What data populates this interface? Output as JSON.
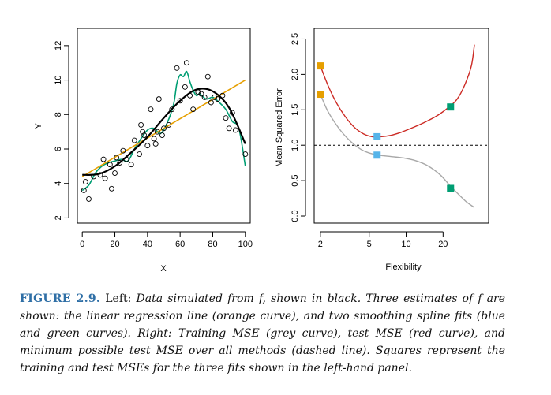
{
  "colors": {
    "truth": "#000000",
    "linear": "#E69F00",
    "blue_spline": "#56B4E9",
    "green_spline": "#009E73",
    "test_mse": "#CC2A24",
    "train_mse": "#A8A8A8",
    "dashed": "#000000"
  },
  "chart_data": [
    {
      "type": "scatter",
      "xlabel": "X",
      "ylabel": "Y",
      "xlim": [
        -3,
        103
      ],
      "ylim": [
        1.7,
        13
      ],
      "x_ticks": [
        0,
        20,
        40,
        60,
        80,
        100
      ],
      "y_ticks": [
        2,
        4,
        6,
        8,
        10,
        12
      ],
      "points": [
        [
          1,
          3.6
        ],
        [
          2,
          4.1
        ],
        [
          4,
          3.1
        ],
        [
          7,
          4.4
        ],
        [
          11,
          4.5
        ],
        [
          13,
          5.4
        ],
        [
          14,
          4.3
        ],
        [
          17,
          5.1
        ],
        [
          18,
          3.7
        ],
        [
          20,
          4.6
        ],
        [
          21,
          5.5
        ],
        [
          23,
          5.2
        ],
        [
          25,
          5.9
        ],
        [
          27,
          5.4
        ],
        [
          30,
          5.1
        ],
        [
          32,
          6.5
        ],
        [
          35,
          5.7
        ],
        [
          36,
          7.4
        ],
        [
          37,
          7.0
        ],
        [
          38,
          6.8
        ],
        [
          40,
          6.2
        ],
        [
          42,
          8.3
        ],
        [
          44,
          6.6
        ],
        [
          45,
          6.3
        ],
        [
          46,
          7.0
        ],
        [
          47,
          8.9
        ],
        [
          49,
          6.8
        ],
        [
          50,
          7.2
        ],
        [
          53,
          7.4
        ],
        [
          55,
          8.3
        ],
        [
          58,
          10.7
        ],
        [
          60,
          8.8
        ],
        [
          63,
          9.6
        ],
        [
          64,
          11.0
        ],
        [
          66,
          9.1
        ],
        [
          68,
          8.3
        ],
        [
          71,
          9.3
        ],
        [
          73,
          9.2
        ],
        [
          75,
          9.0
        ],
        [
          77,
          10.2
        ],
        [
          79,
          8.7
        ],
        [
          81,
          9.0
        ],
        [
          83,
          8.9
        ],
        [
          86,
          9.1
        ],
        [
          88,
          7.8
        ],
        [
          90,
          7.2
        ],
        [
          92,
          8.1
        ],
        [
          94,
          7.1
        ],
        [
          100,
          5.7
        ]
      ],
      "series": [
        {
          "name": "",
          "color_key": "truth",
          "x": [
            0,
            10,
            20,
            30,
            40,
            50,
            60,
            70,
            80,
            90,
            100
          ],
          "y": [
            4.5,
            4.55,
            5.0,
            5.8,
            6.7,
            7.8,
            8.8,
            9.45,
            9.35,
            8.4,
            6.3
          ]
        },
        {
          "name": "",
          "color_key": "linear",
          "x": [
            0,
            100
          ],
          "y": [
            4.4,
            10.0
          ]
        },
        {
          "name": "",
          "color_key": "green_spline",
          "x": [
            0,
            4,
            8,
            12,
            16,
            20,
            24,
            28,
            32,
            36,
            40,
            44,
            48,
            52,
            56,
            58,
            60,
            62,
            64,
            66,
            68,
            70,
            72,
            76,
            80,
            84,
            88,
            92,
            96,
            100
          ],
          "y": [
            3.6,
            3.9,
            4.6,
            5.0,
            5.2,
            5.3,
            5.4,
            5.3,
            6.0,
            6.6,
            7.1,
            7.2,
            6.9,
            7.5,
            8.6,
            9.8,
            10.3,
            10.2,
            10.5,
            9.9,
            9.4,
            9.1,
            9.2,
            8.9,
            9.0,
            8.7,
            8.3,
            7.6,
            7.2,
            5.0
          ]
        }
      ]
    },
    {
      "type": "line",
      "xlabel": "Flexibility",
      "ylabel": "Mean Squared Error",
      "x_scale": "log",
      "xlim": [
        1.78,
        47
      ],
      "ylim": [
        -0.1,
        2.65
      ],
      "x_ticks": [
        2,
        5,
        10,
        20
      ],
      "y_ticks": [
        0.0,
        0.5,
        1.0,
        1.5,
        2.0,
        2.5
      ],
      "hline": {
        "y": 1.0,
        "style": "dashed"
      },
      "series": [
        {
          "name": "",
          "color_key": "test_mse",
          "x": [
            2,
            2.3,
            2.7,
            3.2,
            3.8,
            4.5,
            5.3,
            6.2,
            7.5,
            9,
            11,
            14,
            18,
            22,
            26,
            30,
            34,
            36
          ],
          "y": [
            2.12,
            1.85,
            1.6,
            1.4,
            1.25,
            1.16,
            1.12,
            1.12,
            1.14,
            1.18,
            1.24,
            1.32,
            1.42,
            1.53,
            1.65,
            1.85,
            2.12,
            2.42
          ]
        },
        {
          "name": "",
          "color_key": "train_mse",
          "x": [
            2,
            2.3,
            2.8,
            3.4,
            4.2,
            5.0,
            6.0,
            7.5,
            9.5,
            12,
            15,
            19,
            23,
            27,
            31,
            36
          ],
          "y": [
            1.72,
            1.48,
            1.25,
            1.08,
            0.95,
            0.89,
            0.86,
            0.84,
            0.82,
            0.78,
            0.71,
            0.58,
            0.42,
            0.3,
            0.2,
            0.12
          ]
        }
      ],
      "squares": [
        {
          "x": 2,
          "y": 2.12,
          "color_key": "linear"
        },
        {
          "x": 2,
          "y": 1.72,
          "color_key": "linear"
        },
        {
          "x": 5.8,
          "y": 1.12,
          "color_key": "blue_spline"
        },
        {
          "x": 5.8,
          "y": 0.86,
          "color_key": "blue_spline"
        },
        {
          "x": 23,
          "y": 1.54,
          "color_key": "green_spline"
        },
        {
          "x": 23,
          "y": 0.39,
          "color_key": "green_spline"
        }
      ]
    }
  ],
  "caption": {
    "label": "FIGURE 2.9.",
    "s1": " Left: ",
    "s2": "Data simulated from ",
    "s3": "f",
    "s4": ", shown in black. Three estimates of ",
    "s5": "f",
    "s6": " are shown: the linear regression line (orange curve), and two smoothing spline fits (blue and green curves). Right: Training MSE (grey curve), test MSE (red curve), and minimum possible test MSE over all methods (dashed line). Squares represent the training and test MSEs for the three fits shown in the left-hand panel."
  }
}
